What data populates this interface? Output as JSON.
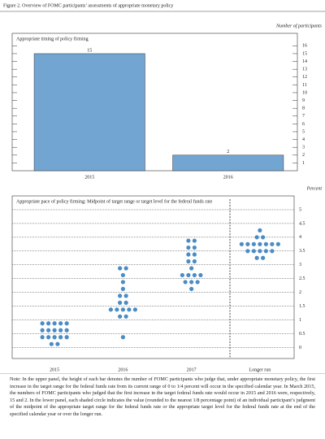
{
  "figure_title": "Figure 2. Overview of FOMC participants’ assessments of appropriate monetary policy",
  "notes": "Note: In the upper panel, the height of each bar denotes the number of FOMC participants who judge that, under appropriate monetary policy, the first increase in the target range for the federal funds rate from its current range of 0 to 1/4 percent will occur in the specified calendar year. In March 2015, the numbers of FOMC participants who judged that the first increase in the target federal funds rate would occur in 2015 and 2016 were, respectively, 15 and 2. In the lower panel, each shaded circle indicates the value (rounded to the nearest 1/8 percentage point) of an individual participant’s judgment of the midpoint of the appropriate target range for the federal funds rate or the appropriate target level for the federal funds rate at the end of the specified calendar year or over the longer run.",
  "chart_data": [
    {
      "type": "bar",
      "title": "Appropriate timing of policy firming",
      "unit_label": "Number of participants",
      "categories": [
        "2015",
        "2016"
      ],
      "values": [
        15,
        2
      ],
      "color": "#73a5d2",
      "ylim": [
        0,
        17.6
      ],
      "yticks": [
        1,
        2,
        3,
        4,
        5,
        6,
        7,
        8,
        9,
        10,
        11,
        12,
        13,
        14,
        15,
        16
      ],
      "grid": false
    },
    {
      "type": "dot",
      "title": "Appropriate pace of policy firming: Midpoint of target range or target level for the federal funds rate",
      "unit_label": "Percent",
      "categories": [
        "2015",
        "2016",
        "2017",
        "Longer run"
      ],
      "values": [
        [
          0.125,
          0.125,
          0.375,
          0.375,
          0.375,
          0.375,
          0.375,
          0.625,
          0.625,
          0.625,
          0.625,
          0.625,
          0.875,
          0.875,
          0.875,
          0.875,
          0.875
        ],
        [
          0.375,
          1.125,
          1.125,
          1.375,
          1.375,
          1.375,
          1.375,
          1.375,
          1.625,
          1.625,
          1.875,
          1.875,
          2.125,
          2.375,
          2.625,
          2.875,
          2.875
        ],
        [
          2.125,
          2.375,
          2.375,
          2.375,
          2.625,
          2.625,
          2.625,
          2.625,
          2.875,
          3.125,
          3.125,
          3.375,
          3.375,
          3.625,
          3.625,
          3.875,
          3.875
        ],
        [
          3.25,
          3.25,
          3.5,
          3.5,
          3.5,
          3.5,
          3.5,
          3.75,
          3.75,
          3.75,
          3.75,
          3.75,
          3.75,
          3.75,
          4,
          4,
          4.25
        ]
      ],
      "color": "#4a8cc4",
      "ylim": [
        -0.4,
        5.5
      ],
      "yticks": [
        0,
        0.5,
        1,
        1.5,
        2,
        2.5,
        3,
        3.5,
        4,
        4.5,
        5
      ],
      "grid": true
    }
  ]
}
